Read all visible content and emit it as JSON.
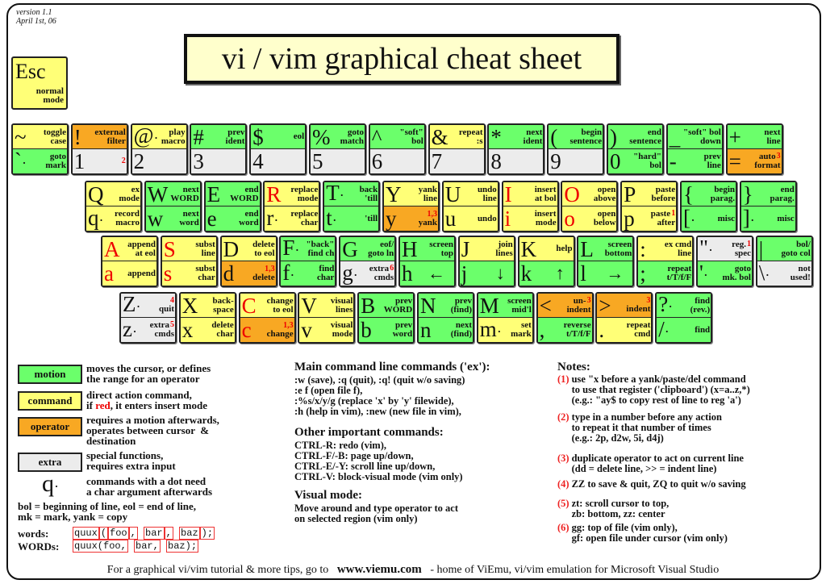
{
  "version": "version 1.1",
  "date": "April 1st, 06",
  "title": "vi / vim graphical cheat sheet",
  "colors": {
    "m": "#6bff6b",
    "c": "#ffff77",
    "o": "#f8a823",
    "x": "#ececec",
    "red": "#e00000"
  },
  "esc": {
    "char": "Esc",
    "label": "normal\nmode",
    "type": "c"
  },
  "rows": [
    [
      {
        "top": {
          "ch": "~",
          "lbl": "toggle\ncase",
          "t": "c"
        },
        "bot": {
          "ch": "`",
          "dot": true,
          "lbl": "goto\nmark",
          "t": "m"
        }
      },
      {
        "top": {
          "ch": "!",
          "lbl": "external\nfilter",
          "t": "o"
        },
        "bot": {
          "ch": "1",
          "num": true,
          "lbl": "",
          "t": "x",
          "note": "2"
        }
      },
      {
        "top": {
          "ch": "@",
          "dot": true,
          "lbl": "play\nmacro",
          "t": "c"
        },
        "bot": {
          "ch": "2",
          "num": true,
          "lbl": "",
          "t": "x"
        }
      },
      {
        "top": {
          "ch": "#",
          "lbl": "prev\nident",
          "t": "m"
        },
        "bot": {
          "ch": "3",
          "num": true,
          "lbl": "",
          "t": "x"
        }
      },
      {
        "top": {
          "ch": "$",
          "lbl": "eol",
          "t": "m"
        },
        "bot": {
          "ch": "4",
          "num": true,
          "lbl": "",
          "t": "x"
        }
      },
      {
        "top": {
          "ch": "%",
          "lbl": "goto\nmatch",
          "t": "m"
        },
        "bot": {
          "ch": "5",
          "num": true,
          "lbl": "",
          "t": "x"
        }
      },
      {
        "top": {
          "ch": "^",
          "lbl": "\"soft\"\nbol",
          "t": "m"
        },
        "bot": {
          "ch": "6",
          "num": true,
          "lbl": "",
          "t": "x"
        }
      },
      {
        "top": {
          "ch": "&",
          "lbl": "repeat\n:s",
          "t": "c"
        },
        "bot": {
          "ch": "7",
          "num": true,
          "lbl": "",
          "t": "x"
        }
      },
      {
        "top": {
          "ch": "*",
          "lbl": "next\nident",
          "t": "m"
        },
        "bot": {
          "ch": "8",
          "num": true,
          "lbl": "",
          "t": "x"
        }
      },
      {
        "top": {
          "ch": "(",
          "lbl": "begin\nsentence",
          "t": "m"
        },
        "bot": {
          "ch": "9",
          "num": true,
          "lbl": "",
          "t": "x"
        }
      },
      {
        "top": {
          "ch": ")",
          "lbl": "end\nsentence",
          "t": "m"
        },
        "bot": {
          "ch": "0",
          "num": true,
          "lbl": "\"hard\"\nbol",
          "t": "m"
        }
      },
      {
        "top": {
          "ch": "_",
          "lbl": "\"soft\" bol\ndown",
          "t": "m"
        },
        "bot": {
          "ch": "-",
          "lbl": "prev\nline",
          "t": "m"
        }
      },
      {
        "top": {
          "ch": "+",
          "lbl": "next\nline",
          "t": "m"
        },
        "bot": {
          "ch": "=",
          "lbl": "auto\nformat",
          "t": "o",
          "note": "3"
        }
      }
    ],
    [
      {
        "top": {
          "ch": "Q",
          "lbl": "ex\nmode",
          "t": "c"
        },
        "bot": {
          "ch": "q",
          "dot": true,
          "lbl": "record\nmacro",
          "t": "c"
        }
      },
      {
        "top": {
          "ch": "W",
          "lbl": "next\nWORD",
          "t": "m"
        },
        "bot": {
          "ch": "w",
          "lbl": "next\nword",
          "t": "m"
        }
      },
      {
        "top": {
          "ch": "E",
          "lbl": "end\nWORD",
          "t": "m"
        },
        "bot": {
          "ch": "e",
          "lbl": "end\nword",
          "t": "m"
        }
      },
      {
        "top": {
          "ch": "R",
          "red": true,
          "lbl": "replace\nmode",
          "t": "c"
        },
        "bot": {
          "ch": "r",
          "dot": true,
          "lbl": "replace\nchar",
          "t": "c"
        }
      },
      {
        "top": {
          "ch": "T",
          "dot": true,
          "lbl": "back\n'till",
          "t": "m"
        },
        "bot": {
          "ch": "t",
          "dot": true,
          "lbl": "'till",
          "t": "m"
        }
      },
      {
        "top": {
          "ch": "Y",
          "lbl": "yank\nline",
          "t": "c"
        },
        "bot": {
          "ch": "y",
          "lbl": "yank",
          "t": "o",
          "note": "1,3"
        }
      },
      {
        "top": {
          "ch": "U",
          "lbl": "undo\nline",
          "t": "c"
        },
        "bot": {
          "ch": "u",
          "lbl": "undo",
          "t": "c"
        }
      },
      {
        "top": {
          "ch": "I",
          "red": true,
          "lbl": "insert\nat bol",
          "t": "c"
        },
        "bot": {
          "ch": "i",
          "red": true,
          "lbl": "insert\nmode",
          "t": "c"
        }
      },
      {
        "top": {
          "ch": "O",
          "red": true,
          "lbl": "open\nabove",
          "t": "c"
        },
        "bot": {
          "ch": "o",
          "red": true,
          "lbl": "open\nbelow",
          "t": "c"
        }
      },
      {
        "top": {
          "ch": "P",
          "lbl": "paste\nbefore",
          "t": "c"
        },
        "bot": {
          "ch": "p",
          "lbl": "paste\nafter",
          "t": "c",
          "note": "1"
        }
      },
      {
        "top": {
          "ch": "{",
          "lbl": "begin\nparag.",
          "t": "m"
        },
        "bot": {
          "ch": "[",
          "dot": true,
          "lbl": "misc",
          "t": "m"
        }
      },
      {
        "top": {
          "ch": "}",
          "lbl": "end\nparag.",
          "t": "m"
        },
        "bot": {
          "ch": "]",
          "dot": true,
          "lbl": "misc",
          "t": "m"
        }
      }
    ],
    [
      {
        "top": {
          "ch": "A",
          "red": true,
          "lbl": "append\nat eol",
          "t": "c"
        },
        "bot": {
          "ch": "a",
          "red": true,
          "lbl": "append",
          "t": "c"
        }
      },
      {
        "top": {
          "ch": "S",
          "red": true,
          "lbl": "subst\nline",
          "t": "c"
        },
        "bot": {
          "ch": "s",
          "red": true,
          "lbl": "subst\nchar",
          "t": "c"
        }
      },
      {
        "top": {
          "ch": "D",
          "lbl": "delete\nto eol",
          "t": "c"
        },
        "bot": {
          "ch": "d",
          "lbl": "delete",
          "t": "o",
          "note": "1,3"
        }
      },
      {
        "top": {
          "ch": "F",
          "dot": true,
          "lbl": "\"back\"\nfind ch",
          "t": "m"
        },
        "bot": {
          "ch": "f",
          "dot": true,
          "lbl": "find\nchar",
          "t": "m"
        }
      },
      {
        "top": {
          "ch": "G",
          "lbl": "eof/\ngoto ln",
          "t": "m"
        },
        "bot": {
          "ch": "g",
          "dot": true,
          "lbl": "extra\ncmds",
          "t": "x",
          "note": "6"
        }
      },
      {
        "top": {
          "ch": "H",
          "lbl": "screen\ntop",
          "t": "m"
        },
        "bot": {
          "ch": "h",
          "lbl": "←",
          "arrow": true,
          "t": "m"
        }
      },
      {
        "top": {
          "ch": "J",
          "lbl": "join\nlines",
          "t": "c"
        },
        "bot": {
          "ch": "j",
          "lbl": "↓",
          "arrow": true,
          "t": "m"
        }
      },
      {
        "top": {
          "ch": "K",
          "lbl": "help",
          "t": "c"
        },
        "bot": {
          "ch": "k",
          "lbl": "↑",
          "arrow": true,
          "t": "m"
        }
      },
      {
        "top": {
          "ch": "L",
          "lbl": "screen\nbottom",
          "t": "m"
        },
        "bot": {
          "ch": "l",
          "lbl": "→",
          "arrow": true,
          "t": "m"
        }
      },
      {
        "top": {
          "ch": ":",
          "lbl": "ex cmd\nline",
          "t": "c"
        },
        "bot": {
          "ch": ";",
          "lbl": "repeat\nt/T/f/F",
          "t": "m"
        }
      },
      {
        "top": {
          "ch": "\"",
          "dot": true,
          "lbl": "reg.\nspec",
          "t": "x",
          "note": "1"
        },
        "bot": {
          "ch": "'",
          "dot": true,
          "lbl": "goto\nmk. bol",
          "t": "m"
        }
      },
      {
        "top": {
          "ch": "|",
          "lbl": "bol/\ngoto col",
          "t": "m"
        },
        "bot": {
          "ch": "\\",
          "dot": true,
          "lbl": "not\nused!",
          "t": "x"
        }
      }
    ],
    [
      {
        "top": {
          "ch": "Z",
          "dot": true,
          "lbl": "quit",
          "t": "x",
          "note": "4"
        },
        "bot": {
          "ch": "z",
          "dot": true,
          "lbl": "extra\ncmds",
          "t": "x",
          "note": "5"
        }
      },
      {
        "top": {
          "ch": "X",
          "lbl": "back-\nspace",
          "t": "c"
        },
        "bot": {
          "ch": "x",
          "lbl": "delete\nchar",
          "t": "c"
        }
      },
      {
        "top": {
          "ch": "C",
          "red": true,
          "lbl": "change\nto eol",
          "t": "c"
        },
        "bot": {
          "ch": "c",
          "red": true,
          "lbl": "change",
          "t": "o",
          "note": "1,3"
        }
      },
      {
        "top": {
          "ch": "V",
          "lbl": "visual\nlines",
          "t": "c"
        },
        "bot": {
          "ch": "v",
          "lbl": "visual\nmode",
          "t": "c"
        }
      },
      {
        "top": {
          "ch": "B",
          "lbl": "prev\nWORD",
          "t": "m"
        },
        "bot": {
          "ch": "b",
          "lbl": "prev\nword",
          "t": "m"
        }
      },
      {
        "top": {
          "ch": "N",
          "lbl": "prev\n(find)",
          "t": "m"
        },
        "bot": {
          "ch": "n",
          "lbl": "next\n(find)",
          "t": "m"
        }
      },
      {
        "top": {
          "ch": "M",
          "lbl": "screen\nmid'l",
          "t": "m"
        },
        "bot": {
          "ch": "m",
          "dot": true,
          "lbl": "set\nmark",
          "t": "c"
        }
      },
      {
        "top": {
          "ch": "<",
          "lbl": "un-\nindent",
          "t": "o",
          "note": "3"
        },
        "bot": {
          "ch": ",",
          "lbl": "reverse\nt/T/f/F",
          "t": "m"
        }
      },
      {
        "top": {
          "ch": ">",
          "lbl": "indent",
          "t": "o",
          "note": "3"
        },
        "bot": {
          "ch": ".",
          "lbl": "repeat\ncmd",
          "t": "c"
        }
      },
      {
        "top": {
          "ch": "?",
          "dot": true,
          "lbl": "find\n(rev.)",
          "t": "m"
        },
        "bot": {
          "ch": "/",
          "dot": true,
          "lbl": "find",
          "t": "m"
        }
      }
    ]
  ],
  "legend": {
    "motion": {
      "label": "motion",
      "desc": "moves the cursor, or defines\nthe range for an operator"
    },
    "command": {
      "label": "command",
      "desc1": "direct action command,",
      "desc2a": "if ",
      "desc2red": "red",
      "desc2b": ", it enters insert mode"
    },
    "operator": {
      "label": "operator",
      "desc": "requires a motion afterwards,\noperates between cursor  &\ndestination"
    },
    "extra": {
      "label": "extra",
      "desc": "special functions,\nrequires extra input"
    },
    "dot": {
      "char": "q",
      "desc": "commands with a dot need\na char argument afterwards"
    },
    "abbrev": "bol = beginning of line, eol = end of line,\nmk = mark, yank = copy",
    "words_label": "words:",
    "words": [
      "quux",
      "(",
      "foo",
      ",",
      "bar",
      ",",
      "baz",
      ");"
    ],
    "WORDs_label": "WORDs:",
    "WORDs": [
      "quux(foo,",
      "bar,",
      "baz);"
    ]
  },
  "ex": {
    "heading": "Main command line commands ('ex'):",
    "lines": ":w (save), :q (quit), :q! (quit w/o saving)\n:e f (open file f),\n:%s/x/y/g (replace 'x' by 'y' filewide),\n:h (help in vim), :new (new file in vim),"
  },
  "other": {
    "heading": "Other important commands:",
    "lines": "CTRL-R: redo (vim),\nCTRL-F/-B: page up/down,\nCTRL-E/-Y: scroll line up/down,\nCTRL-V: block-visual mode (vim only)"
  },
  "visual": {
    "heading": "Visual mode:",
    "lines": "Move around and type operator to act\non selected region (vim only)"
  },
  "notes": {
    "heading": "Notes:",
    "items": [
      {
        "n": "(1)",
        "text": "use \"x before a yank/paste/del command\nto use that register ('clipboard') (x=a..z,*)\n(e.g.: \"ay$ to copy rest of line to reg 'a')"
      },
      {
        "n": "(2)",
        "text": "type in a number before any action\nto repeat it that number of times\n(e.g.: 2p, d2w, 5i, d4j)"
      },
      {
        "n": "(3)",
        "text": "duplicate operator to act on current line\n(dd = delete line, >> = indent line)"
      },
      {
        "n": "(4)",
        "text": "ZZ to save & quit, ZQ to quit w/o saving"
      },
      {
        "n": "(5)",
        "text": "zt: scroll cursor to top,\nzb: bottom, zz: center"
      },
      {
        "n": "(6)",
        "text": "gg: top of file (vim only),\ngf: open file under cursor (vim only)"
      }
    ]
  },
  "footer": {
    "pre": "For a graphical vi/vim tutorial & more tips, go to",
    "link": "www.viemu.com",
    "post": "- home of ViEmu, vi/vim emulation for Microsoft Visual Studio"
  }
}
